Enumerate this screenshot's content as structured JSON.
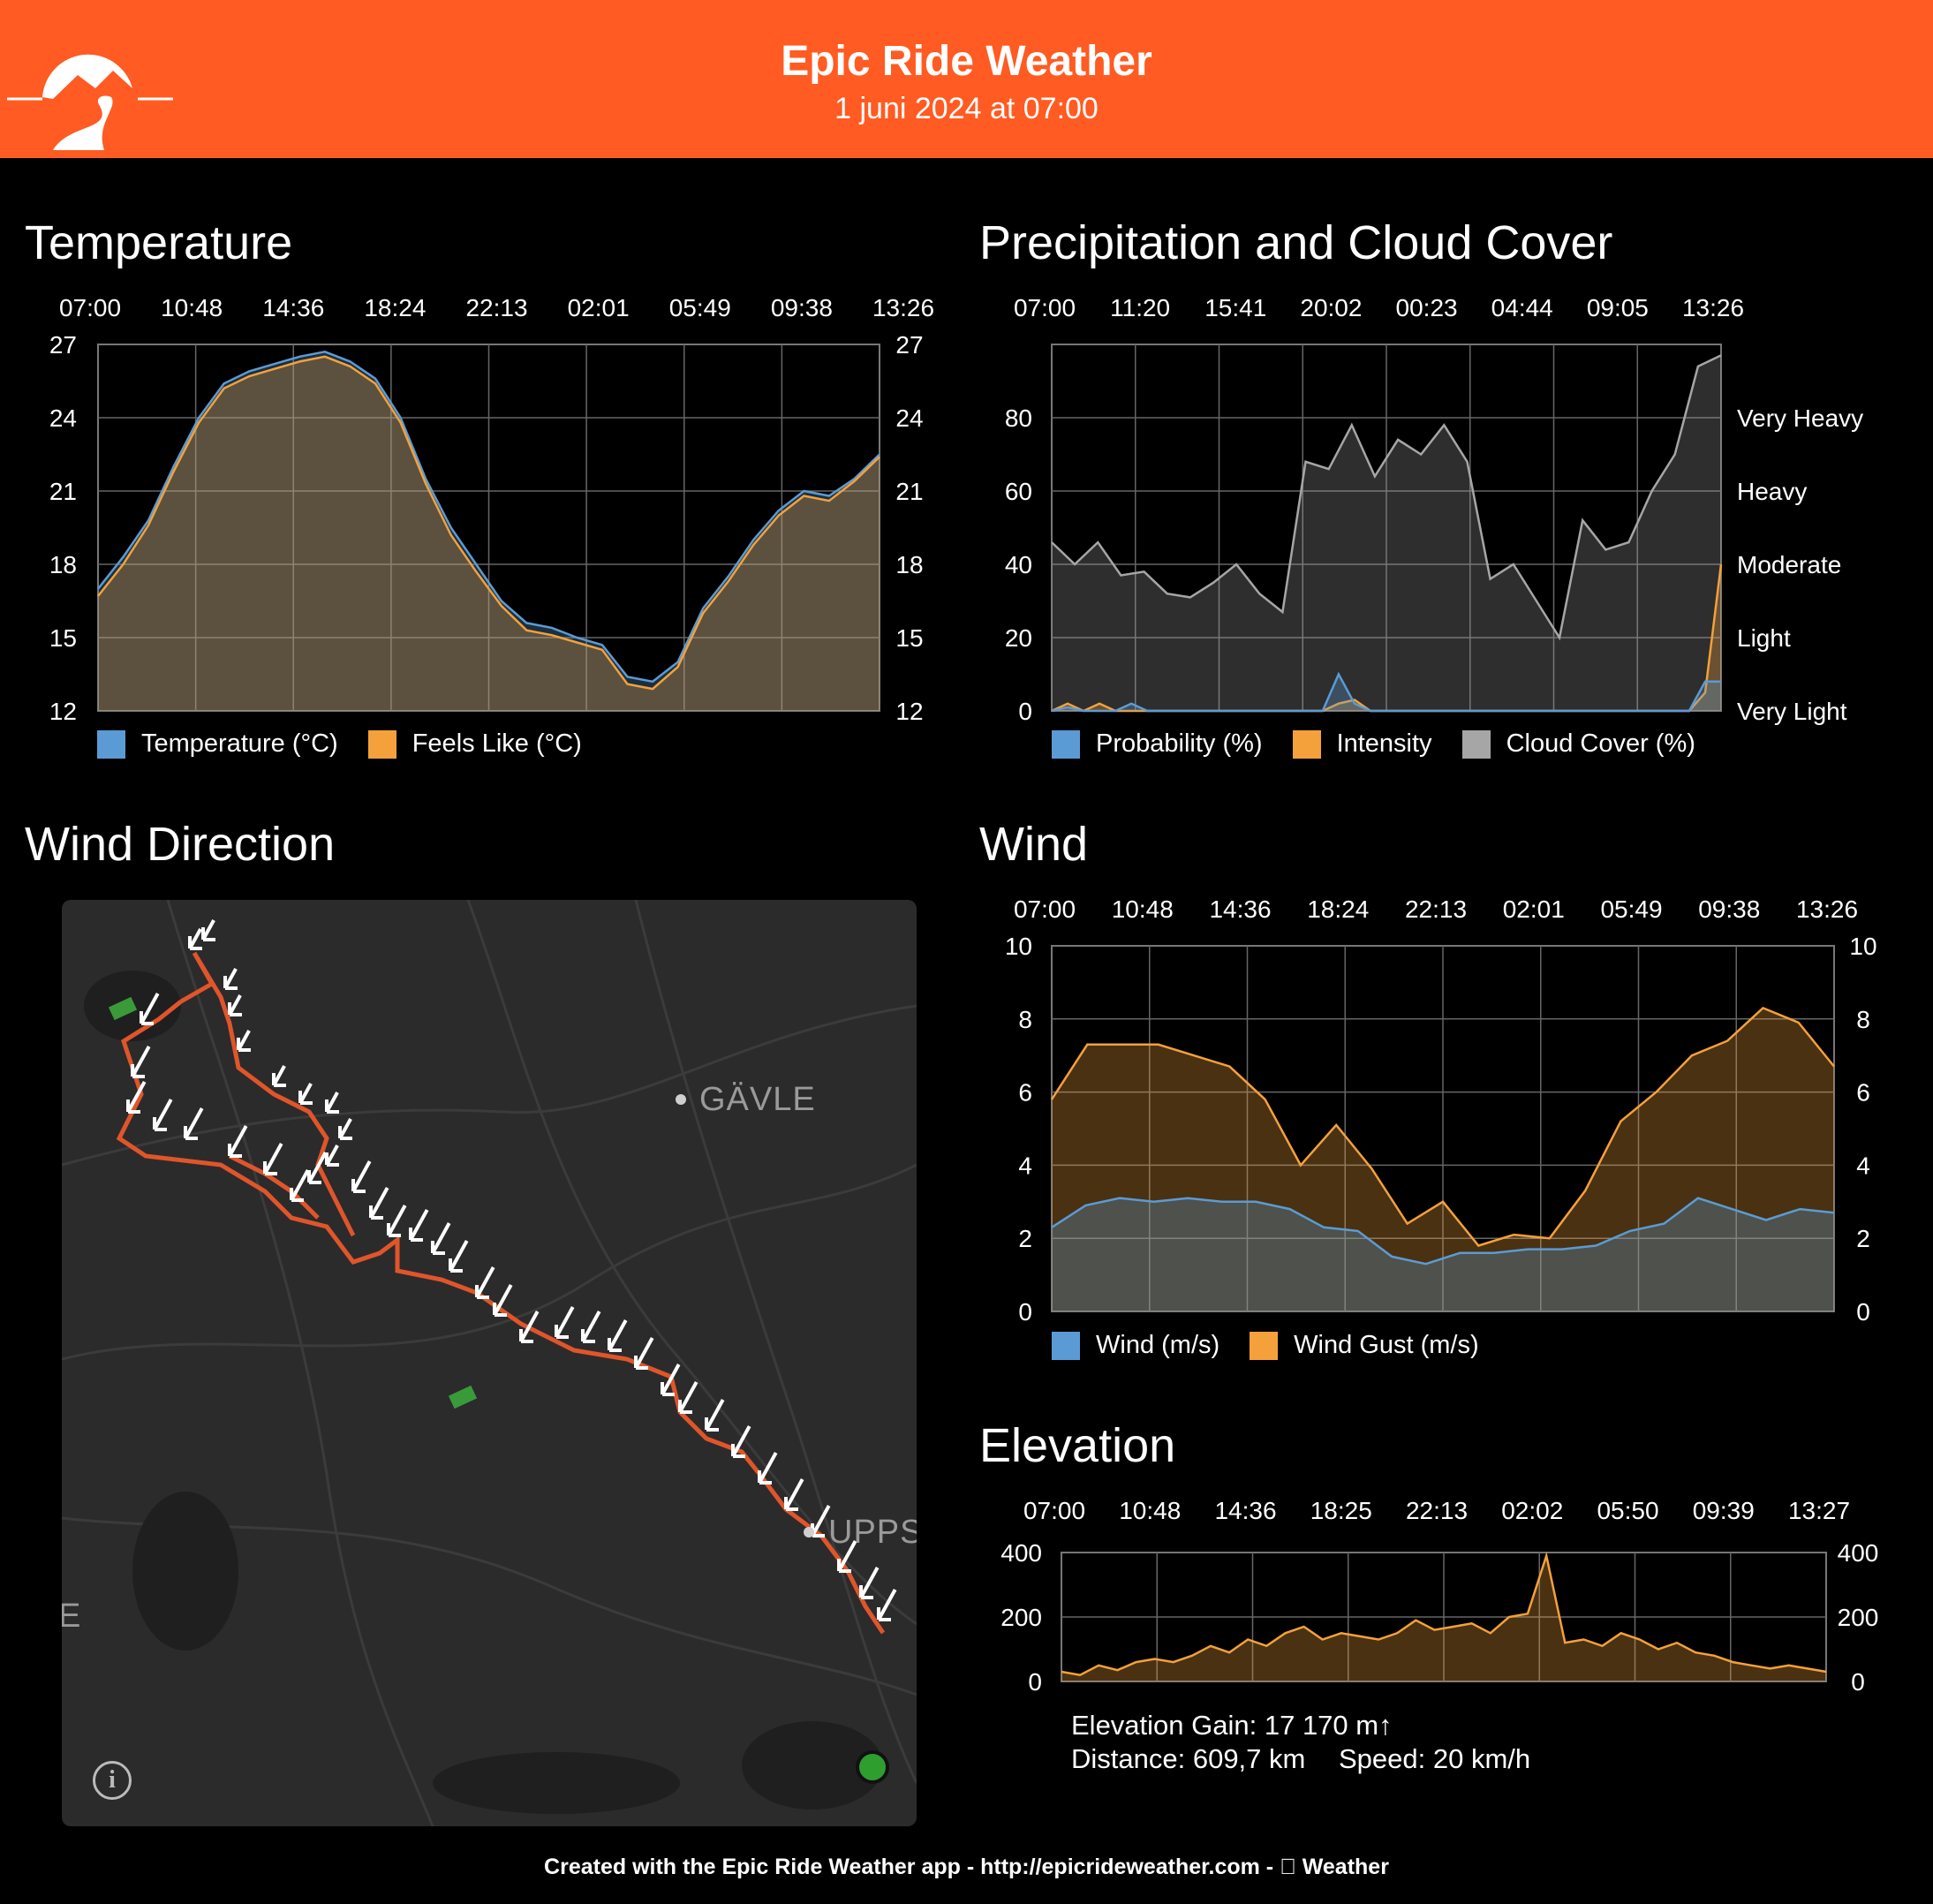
{
  "header": {
    "title": "Epic Ride Weather",
    "subtitle": "1 juni 2024 at 07:00",
    "background": "#ff5b22"
  },
  "panels": {
    "temperature": "Temperature",
    "precipitation": "Precipitation and Cloud Cover",
    "wind_direction": "Wind Direction",
    "wind": "Wind",
    "elevation": "Elevation"
  },
  "map": {
    "cities": [
      "GÄVLE",
      "UPPS",
      "E"
    ],
    "start_marker_color": "#2e9e2e",
    "route_color": "#e0552a"
  },
  "stats": {
    "elevation_gain": "Elevation Gain: 17 170 m↑",
    "distance": "Distance: 609,7 km",
    "speed": "Speed: 20 km/h"
  },
  "footer": "Created with the Epic Ride Weather app - http://epicrideweather.com -  Weather",
  "chart_data": [
    {
      "id": "temperature",
      "type": "area",
      "x_ticks": [
        "07:00",
        "10:48",
        "14:36",
        "18:24",
        "22:13",
        "02:01",
        "05:49",
        "09:38",
        "13:26"
      ],
      "ylim": [
        12,
        27
      ],
      "y_ticks": [
        27,
        24,
        21,
        18,
        15,
        12
      ],
      "y_ticks_right": [
        27,
        24,
        21,
        18,
        15,
        12
      ],
      "grid": true,
      "legend_position": "bottom-left",
      "series": [
        {
          "name": "Temperature (°C)",
          "color": "#5b9bd5",
          "values": [
            17.0,
            18.3,
            19.8,
            22.0,
            24.0,
            25.4,
            25.9,
            26.2,
            26.5,
            26.7,
            26.3,
            25.6,
            24.0,
            21.5,
            19.5,
            18.0,
            16.5,
            15.6,
            15.4,
            15.0,
            14.7,
            13.4,
            13.2,
            14.0,
            16.2,
            17.5,
            19.0,
            20.2,
            21.0,
            20.8,
            21.5,
            22.5
          ]
        },
        {
          "name": "Feels Like (°C)",
          "color": "#f4a13b",
          "values": [
            16.7,
            18.0,
            19.6,
            21.8,
            23.8,
            25.2,
            25.7,
            26.0,
            26.3,
            26.5,
            26.1,
            25.4,
            23.8,
            21.3,
            19.2,
            17.7,
            16.3,
            15.3,
            15.1,
            14.8,
            14.5,
            13.1,
            12.9,
            13.8,
            16.0,
            17.3,
            18.8,
            20.0,
            20.8,
            20.6,
            21.4,
            22.4
          ]
        }
      ]
    },
    {
      "id": "precipitation",
      "type": "area",
      "x_ticks": [
        "07:00",
        "11:20",
        "15:41",
        "20:02",
        "00:23",
        "04:44",
        "09:05",
        "13:26"
      ],
      "ylim": [
        0,
        100
      ],
      "y_ticks": [
        80,
        60,
        40,
        20,
        0
      ],
      "y_ticks_right_labels": [
        "Very Heavy",
        "Heavy",
        "Moderate",
        "Light",
        "Very Light"
      ],
      "grid": true,
      "legend_position": "bottom-left",
      "series": [
        {
          "name": "Probability (%)",
          "color": "#5b9bd5",
          "values": [
            0,
            1,
            0,
            0,
            0,
            2,
            0,
            0,
            0,
            0,
            0,
            0,
            0,
            0,
            0,
            0,
            0,
            0,
            10,
            2,
            0,
            0,
            0,
            0,
            0,
            0,
            0,
            0,
            0,
            0,
            0,
            0,
            0,
            0,
            0,
            0,
            0,
            0,
            0,
            0,
            0,
            8,
            8
          ]
        },
        {
          "name": "Intensity",
          "color": "#f4a13b",
          "values": [
            0,
            2,
            0,
            2,
            0,
            0,
            0,
            0,
            0,
            0,
            0,
            0,
            0,
            0,
            0,
            0,
            0,
            0,
            2,
            3,
            0,
            0,
            0,
            0,
            0,
            0,
            0,
            0,
            0,
            0,
            0,
            0,
            0,
            0,
            0,
            0,
            0,
            0,
            0,
            0,
            0,
            5,
            40
          ]
        },
        {
          "name": "Cloud Cover (%)",
          "color": "#a6a6a6",
          "values": [
            46,
            40,
            46,
            37,
            38,
            32,
            31,
            35,
            40,
            32,
            27,
            68,
            66,
            78,
            64,
            74,
            70,
            78,
            68,
            36,
            40,
            30,
            20,
            52,
            44,
            46,
            60,
            70,
            94,
            97
          ]
        }
      ]
    },
    {
      "id": "wind",
      "type": "area",
      "x_ticks": [
        "07:00",
        "10:48",
        "14:36",
        "18:24",
        "22:13",
        "02:01",
        "05:49",
        "09:38",
        "13:26"
      ],
      "ylim": [
        0,
        10
      ],
      "y_ticks": [
        10,
        8,
        6,
        4,
        2,
        0
      ],
      "y_ticks_right": [
        10,
        8,
        6,
        4,
        2,
        0
      ],
      "grid": true,
      "legend_position": "bottom-left",
      "series": [
        {
          "name": "Wind (m/s)",
          "color": "#5b9bd5",
          "values": [
            2.3,
            2.9,
            3.1,
            3.0,
            3.1,
            3.0,
            3.0,
            2.8,
            2.3,
            2.2,
            1.5,
            1.3,
            1.6,
            1.6,
            1.7,
            1.7,
            1.8,
            2.2,
            2.4,
            3.1,
            2.8,
            2.5,
            2.8,
            2.7
          ]
        },
        {
          "name": "Wind Gust (m/s)",
          "color": "#f4a13b",
          "values": [
            5.8,
            7.3,
            7.3,
            7.3,
            7.0,
            6.7,
            5.8,
            4.0,
            5.1,
            3.9,
            2.4,
            3.0,
            1.8,
            2.1,
            2.0,
            3.3,
            5.2,
            6.0,
            7.0,
            7.4,
            8.3,
            7.9,
            6.7
          ]
        }
      ]
    },
    {
      "id": "elevation",
      "type": "area",
      "x_ticks": [
        "07:00",
        "10:48",
        "14:36",
        "18:25",
        "22:13",
        "02:02",
        "05:50",
        "09:39",
        "13:27"
      ],
      "ylim": [
        0,
        400
      ],
      "y_ticks": [
        400,
        200,
        0
      ],
      "y_ticks_right": [
        400,
        200,
        0
      ],
      "grid": true,
      "series": [
        {
          "name": "Elevation",
          "color": "#f4a13b",
          "values": [
            30,
            20,
            50,
            35,
            60,
            70,
            60,
            80,
            110,
            90,
            130,
            110,
            150,
            170,
            130,
            150,
            140,
            130,
            150,
            190,
            160,
            170,
            180,
            150,
            200,
            210,
            390,
            120,
            130,
            110,
            150,
            130,
            100,
            120,
            90,
            80,
            60,
            50,
            40,
            50,
            40,
            30
          ]
        }
      ]
    }
  ]
}
